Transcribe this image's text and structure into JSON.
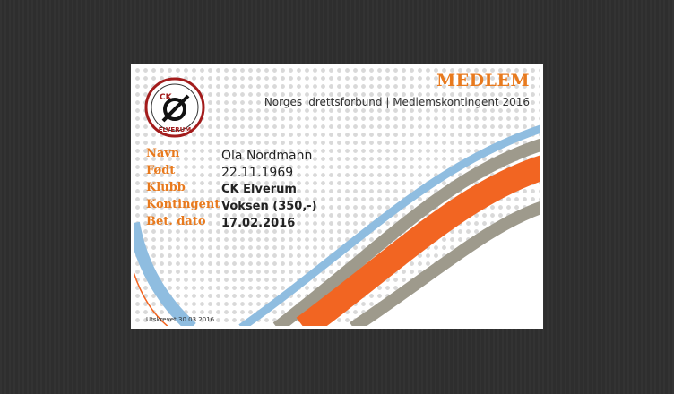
{
  "header": {
    "title": "MEDLEM",
    "subtitle": "Norges idrettsforbund | Medlemskontingent 2016"
  },
  "logo": {
    "top": "CK",
    "bottom": "ELVERUM"
  },
  "fields": [
    {
      "label": "Navn",
      "value": "Ola Nordmann"
    },
    {
      "label": "Født",
      "value": "22.11.1969"
    },
    {
      "label": "Klubb",
      "value": "CK Elverum"
    },
    {
      "label": "Kontingent",
      "value": "Voksen (350,-)"
    },
    {
      "label": "Bet. dato",
      "value": "17.02.2016"
    }
  ],
  "footer": "Utskrevet 30.03.2016"
}
